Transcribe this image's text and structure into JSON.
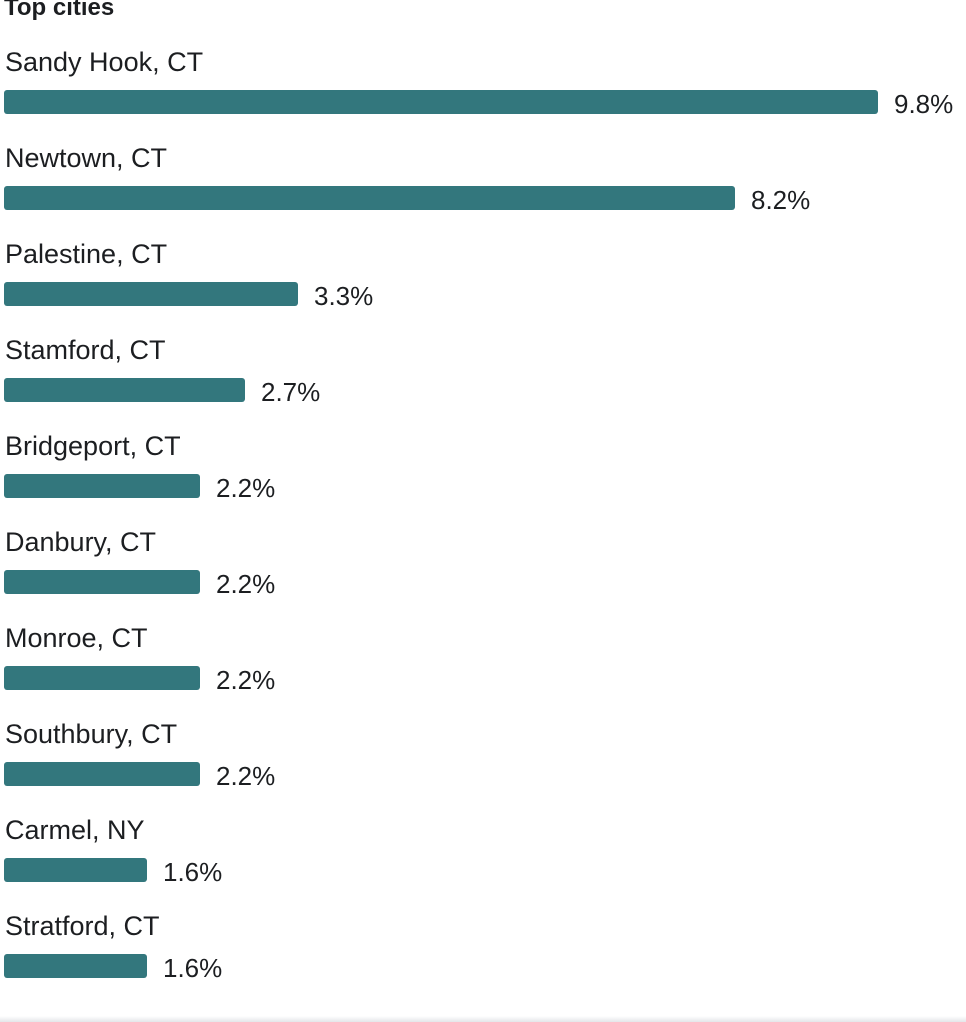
{
  "title": "Top cities",
  "colors": {
    "bar": "#33777d",
    "text": "#1c1e21"
  },
  "chart_data": {
    "type": "bar",
    "orientation": "horizontal",
    "title": "Top cities",
    "categories": [
      "Sandy Hook, CT",
      "Newtown, CT",
      "Palestine, CT",
      "Stamford, CT",
      "Bridgeport, CT",
      "Danbury, CT",
      "Monroe, CT",
      "Southbury, CT",
      "Carmel, NY",
      "Stratford, CT"
    ],
    "values": [
      9.8,
      8.2,
      3.3,
      2.7,
      2.2,
      2.2,
      2.2,
      2.2,
      1.6,
      1.6
    ],
    "value_labels": [
      "9.8%",
      "8.2%",
      "3.3%",
      "2.7%",
      "2.2%",
      "2.2%",
      "2.2%",
      "2.2%",
      "1.6%",
      "1.6%"
    ],
    "unit": "%",
    "xlim": [
      0,
      9.8
    ],
    "grid": false,
    "legend": "none"
  }
}
